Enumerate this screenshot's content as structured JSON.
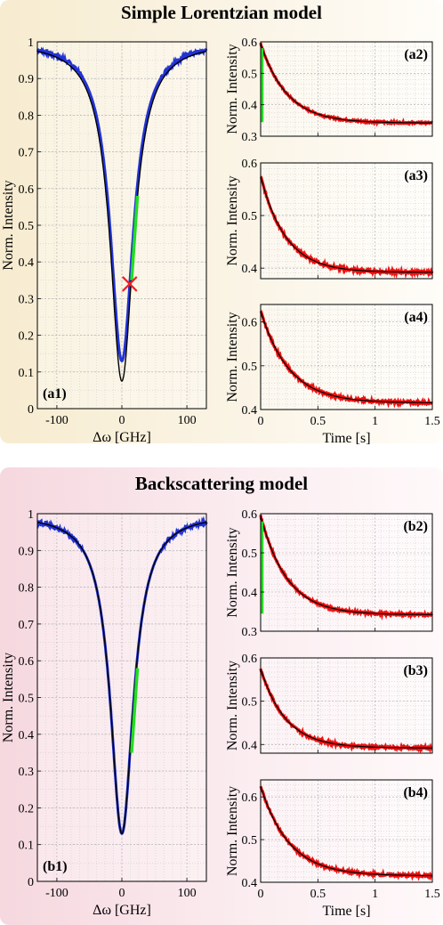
{
  "sections": {
    "a": {
      "title": "Simple Lorentzian model",
      "bg": "#f7ecd0"
    },
    "b": {
      "title": "Backscattering model",
      "bg": "#f6d8df"
    }
  },
  "colors": {
    "data_blue": "#2233d6",
    "fit_black": "#000000",
    "highlight_green": "#22dd22",
    "data_red": "#ee1111",
    "marker_red": "#ee2222"
  },
  "chart_data": [
    {
      "id": "a1",
      "type": "line",
      "label": "(a1)",
      "xlabel": "Δω [GHz]",
      "ylabel": "Norm. Intensity",
      "xlim": [
        -130,
        130
      ],
      "ylim": [
        0,
        1
      ],
      "xticks": [
        -100,
        0,
        100
      ],
      "xtick_labels": [
        "-100",
        "0",
        "100"
      ],
      "yticks": [
        0,
        0.1,
        0.2,
        0.3,
        0.4,
        0.5,
        0.6,
        0.7,
        0.8,
        0.9,
        1
      ],
      "ytick_labels": [
        "0",
        "0.1",
        "0.2",
        "0.3",
        "0.4",
        "0.5",
        "0.6",
        "0.7",
        "0.8",
        "0.9",
        "1"
      ],
      "grid": true,
      "series": [
        {
          "role": "measured",
          "color": "#2233d6",
          "model": "lorentz_flat",
          "depth": 0.87,
          "hwhm": 21.5,
          "floor": 0.13
        },
        {
          "role": "fit",
          "color": "#000000",
          "model": "lorentz",
          "depth": 0.925,
          "hwhm": 22
        },
        {
          "role": "highlight",
          "color": "#22dd22",
          "x_range": [
            15,
            24
          ],
          "y_range": [
            0.35,
            0.58
          ]
        }
      ],
      "marker": {
        "x": 12,
        "y": 0.34,
        "shape": "x",
        "color": "#ee2222"
      }
    },
    {
      "id": "a2",
      "type": "line",
      "label": "(a2)",
      "ylabel": "Norm. Intensity",
      "xlim": [
        0,
        1.5
      ],
      "ylim": [
        0.3,
        0.6
      ],
      "xticks": [
        0,
        0.5,
        1,
        1.5
      ],
      "yticks": [
        0.3,
        0.4,
        0.5,
        0.6
      ],
      "ytick_labels": [
        "0.3",
        "0.4",
        "0.5",
        "0.6"
      ],
      "grid": true,
      "decay": {
        "y0": 0.595,
        "yinf": 0.342,
        "tau": 0.23
      },
      "highlight": {
        "x": 0.005,
        "y_range": [
          0.345,
          0.58
        ],
        "color": "#22dd22"
      }
    },
    {
      "id": "a3",
      "type": "line",
      "label": "(a3)",
      "ylabel": "Norm. Intensity",
      "xlim": [
        0,
        1.5
      ],
      "ylim": [
        0.38,
        0.6
      ],
      "xticks": [
        0,
        0.5,
        1,
        1.5
      ],
      "yticks": [
        0.4,
        0.5,
        0.6
      ],
      "ytick_labels": [
        "0.4",
        "0.5",
        "0.6"
      ],
      "grid": true,
      "decay": {
        "y0": 0.575,
        "yinf": 0.392,
        "tau": 0.22
      }
    },
    {
      "id": "a4",
      "type": "line",
      "label": "(a4)",
      "ylabel": "Norm. Intensity",
      "xlabel": "Time [s]",
      "xlim": [
        0,
        1.5
      ],
      "ylim": [
        0.4,
        0.64
      ],
      "xticks": [
        0,
        0.5,
        1,
        1.5
      ],
      "xtick_labels": [
        "0",
        "0.5",
        "1",
        "1.5"
      ],
      "yticks": [
        0.4,
        0.5,
        0.6
      ],
      "ytick_labels": [
        "0.4",
        "0.5",
        "0.6"
      ],
      "grid": true,
      "decay": {
        "y0": 0.625,
        "yinf": 0.415,
        "tau": 0.25
      }
    },
    {
      "id": "b1",
      "type": "line",
      "label": "(b1)",
      "xlabel": "Δω [GHz]",
      "ylabel": "Norm. Intensity",
      "xlim": [
        -130,
        130
      ],
      "ylim": [
        0,
        1
      ],
      "xticks": [
        -100,
        0,
        100
      ],
      "xtick_labels": [
        "-100",
        "0",
        "100"
      ],
      "yticks": [
        0,
        0.1,
        0.2,
        0.3,
        0.4,
        0.5,
        0.6,
        0.7,
        0.8,
        0.9,
        1
      ],
      "ytick_labels": [
        "0",
        "0.1",
        "0.2",
        "0.3",
        "0.4",
        "0.5",
        "0.6",
        "0.7",
        "0.8",
        "0.9",
        "1"
      ],
      "grid": true,
      "series": [
        {
          "role": "measured",
          "color": "#2233d6",
          "model": "lorentz_flat",
          "depth": 0.87,
          "hwhm": 21.5,
          "floor": 0.13
        },
        {
          "role": "fit",
          "color": "#000000",
          "model": "lorentz_flat",
          "depth": 0.87,
          "hwhm": 21.5,
          "floor": 0.13
        },
        {
          "role": "highlight",
          "color": "#22dd22",
          "x_range": [
            15,
            24
          ],
          "y_range": [
            0.35,
            0.58
          ]
        }
      ]
    },
    {
      "id": "b2",
      "type": "line",
      "label": "(b2)",
      "ylabel": "Norm. Intensity",
      "xlim": [
        0,
        1.5
      ],
      "ylim": [
        0.3,
        0.6
      ],
      "xticks": [
        0,
        0.5,
        1,
        1.5
      ],
      "yticks": [
        0.3,
        0.4,
        0.5,
        0.6
      ],
      "ytick_labels": [
        "0.3",
        "0.4",
        "0.5",
        "0.6"
      ],
      "grid": true,
      "decay": {
        "y0": 0.595,
        "yinf": 0.342,
        "tau": 0.23
      },
      "highlight": {
        "x": 0.005,
        "y_range": [
          0.345,
          0.58
        ],
        "color": "#22dd22"
      }
    },
    {
      "id": "b3",
      "type": "line",
      "label": "(b3)",
      "ylabel": "Norm. Intensity",
      "xlim": [
        0,
        1.5
      ],
      "ylim": [
        0.38,
        0.6
      ],
      "xticks": [
        0,
        0.5,
        1,
        1.5
      ],
      "yticks": [
        0.4,
        0.5,
        0.6
      ],
      "ytick_labels": [
        "0.4",
        "0.5",
        "0.6"
      ],
      "grid": true,
      "decay": {
        "y0": 0.575,
        "yinf": 0.392,
        "tau": 0.22
      }
    },
    {
      "id": "b4",
      "type": "line",
      "label": "(b4)",
      "ylabel": "Norm. Intensity",
      "xlabel": "Time [s]",
      "xlim": [
        0,
        1.5
      ],
      "ylim": [
        0.4,
        0.64
      ],
      "xticks": [
        0,
        0.5,
        1,
        1.5
      ],
      "xtick_labels": [
        "0",
        "0.5",
        "1",
        "1.5"
      ],
      "yticks": [
        0.4,
        0.5,
        0.6
      ],
      "ytick_labels": [
        "0.4",
        "0.5",
        "0.6"
      ],
      "grid": true,
      "decay": {
        "y0": 0.625,
        "yinf": 0.415,
        "tau": 0.25
      }
    }
  ]
}
